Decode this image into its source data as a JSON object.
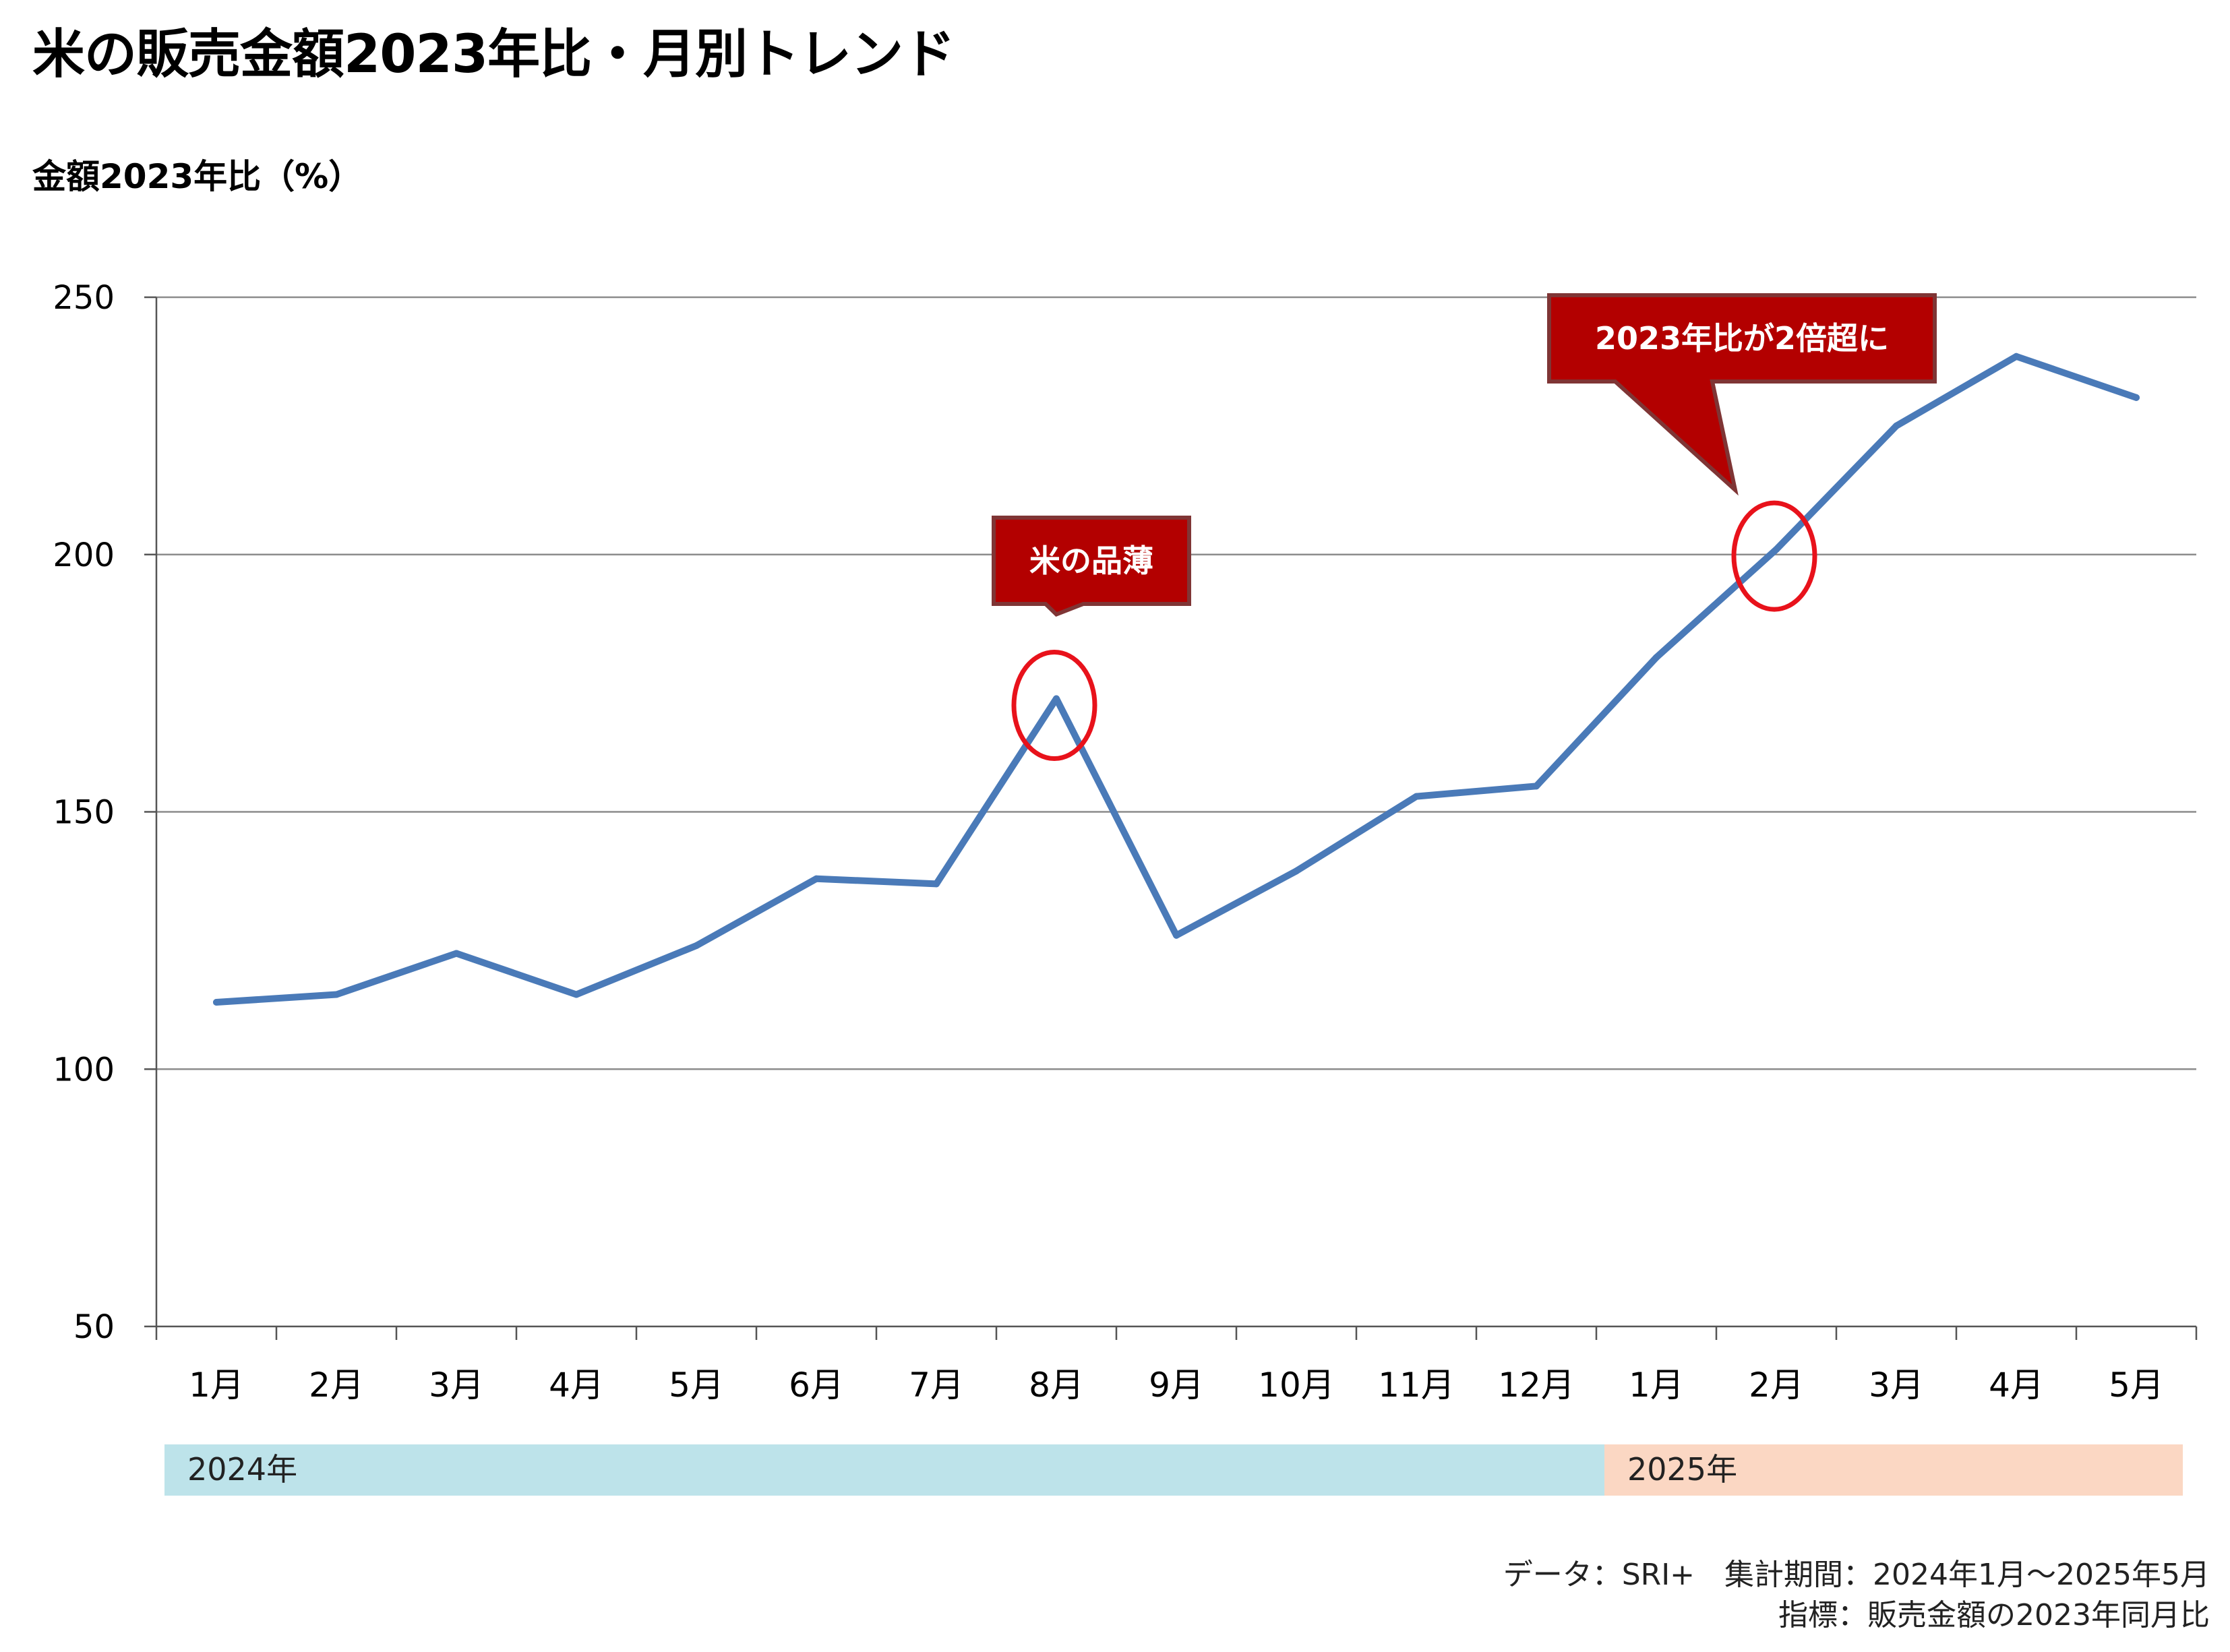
{
  "title": "米の販売金額2023年比・月別トレンド",
  "y_axis_title": "金額2023年比（%）",
  "footer": {
    "line1": "データ：SRI+　集計期間：2024年1月～2025年5月",
    "line2": "指標：販売金額の2023年同月比"
  },
  "colors": {
    "line": "#4a7ab8",
    "callout_fill": "#b30000",
    "callout_border": "#7f3535",
    "highlight_circle": "#e8121b",
    "band_2024": "#bde3ea",
    "band_2025": "#fbd7c3",
    "grid": "#8c8c8c"
  },
  "chart_data": {
    "type": "line",
    "categories": [
      "1月",
      "2月",
      "3月",
      "4月",
      "5月",
      "6月",
      "7月",
      "8月",
      "9月",
      "10月",
      "11月",
      "12月",
      "1月",
      "2月",
      "3月",
      "4月",
      "5月"
    ],
    "series": [
      {
        "values": [
          113,
          114.5,
          122.5,
          114.5,
          124,
          137,
          136,
          172,
          126,
          138.5,
          153,
          155,
          180,
          201,
          225,
          238.5,
          230.5
        ]
      }
    ],
    "ylim": [
      50,
      250
    ],
    "yticks": [
      50,
      100,
      150,
      200,
      250
    ],
    "grid": true,
    "legend": "none",
    "year_bands": [
      {
        "label": "2024年",
        "start_index": 0,
        "end_index": 11
      },
      {
        "label": "2025年",
        "start_index": 12,
        "end_index": 16
      }
    ],
    "annotations": [
      {
        "text": "米の品薄",
        "index": 7,
        "value": 172
      },
      {
        "text": "2023年比が2倍超に",
        "index": 13,
        "value": 201
      }
    ]
  }
}
